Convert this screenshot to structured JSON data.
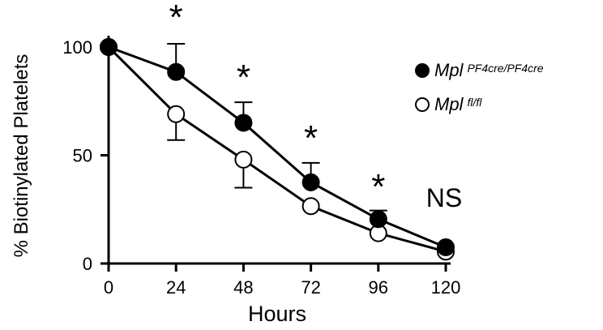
{
  "chart_data": {
    "type": "line",
    "xlabel": "Hours",
    "ylabel": "% Biotinylated Platelets",
    "x": [
      0,
      24,
      48,
      72,
      96,
      120
    ],
    "x_ticks": [
      "0",
      "24",
      "48",
      "72",
      "96",
      "120"
    ],
    "y_ticks": [
      "0",
      "50",
      "100"
    ],
    "xlim": [
      0,
      120
    ],
    "ylim": [
      0,
      100
    ],
    "grid": false,
    "legend_position": "top-right",
    "series": [
      {
        "name": "Mpl",
        "name_superscript": "PF4cre/PF4cre",
        "marker": "filled-circle",
        "color": "#000000",
        "values": [
          100,
          88.5,
          65,
          37.5,
          20.5,
          7.5
        ],
        "error": [
          0,
          13,
          9.5,
          9,
          4,
          0
        ]
      },
      {
        "name": "Mpl",
        "name_superscript": "fl/fl",
        "marker": "open-circle",
        "color": "#000000",
        "values": [
          100,
          69,
          48,
          26.5,
          14,
          5.5
        ],
        "error": [
          0,
          12,
          13,
          0,
          0,
          0
        ]
      }
    ],
    "annotations": [
      {
        "text": "*",
        "x": 24
      },
      {
        "text": "*",
        "x": 48
      },
      {
        "text": "*",
        "x": 72
      },
      {
        "text": "*",
        "x": 96
      },
      {
        "text": "NS",
        "x": 120
      }
    ]
  }
}
